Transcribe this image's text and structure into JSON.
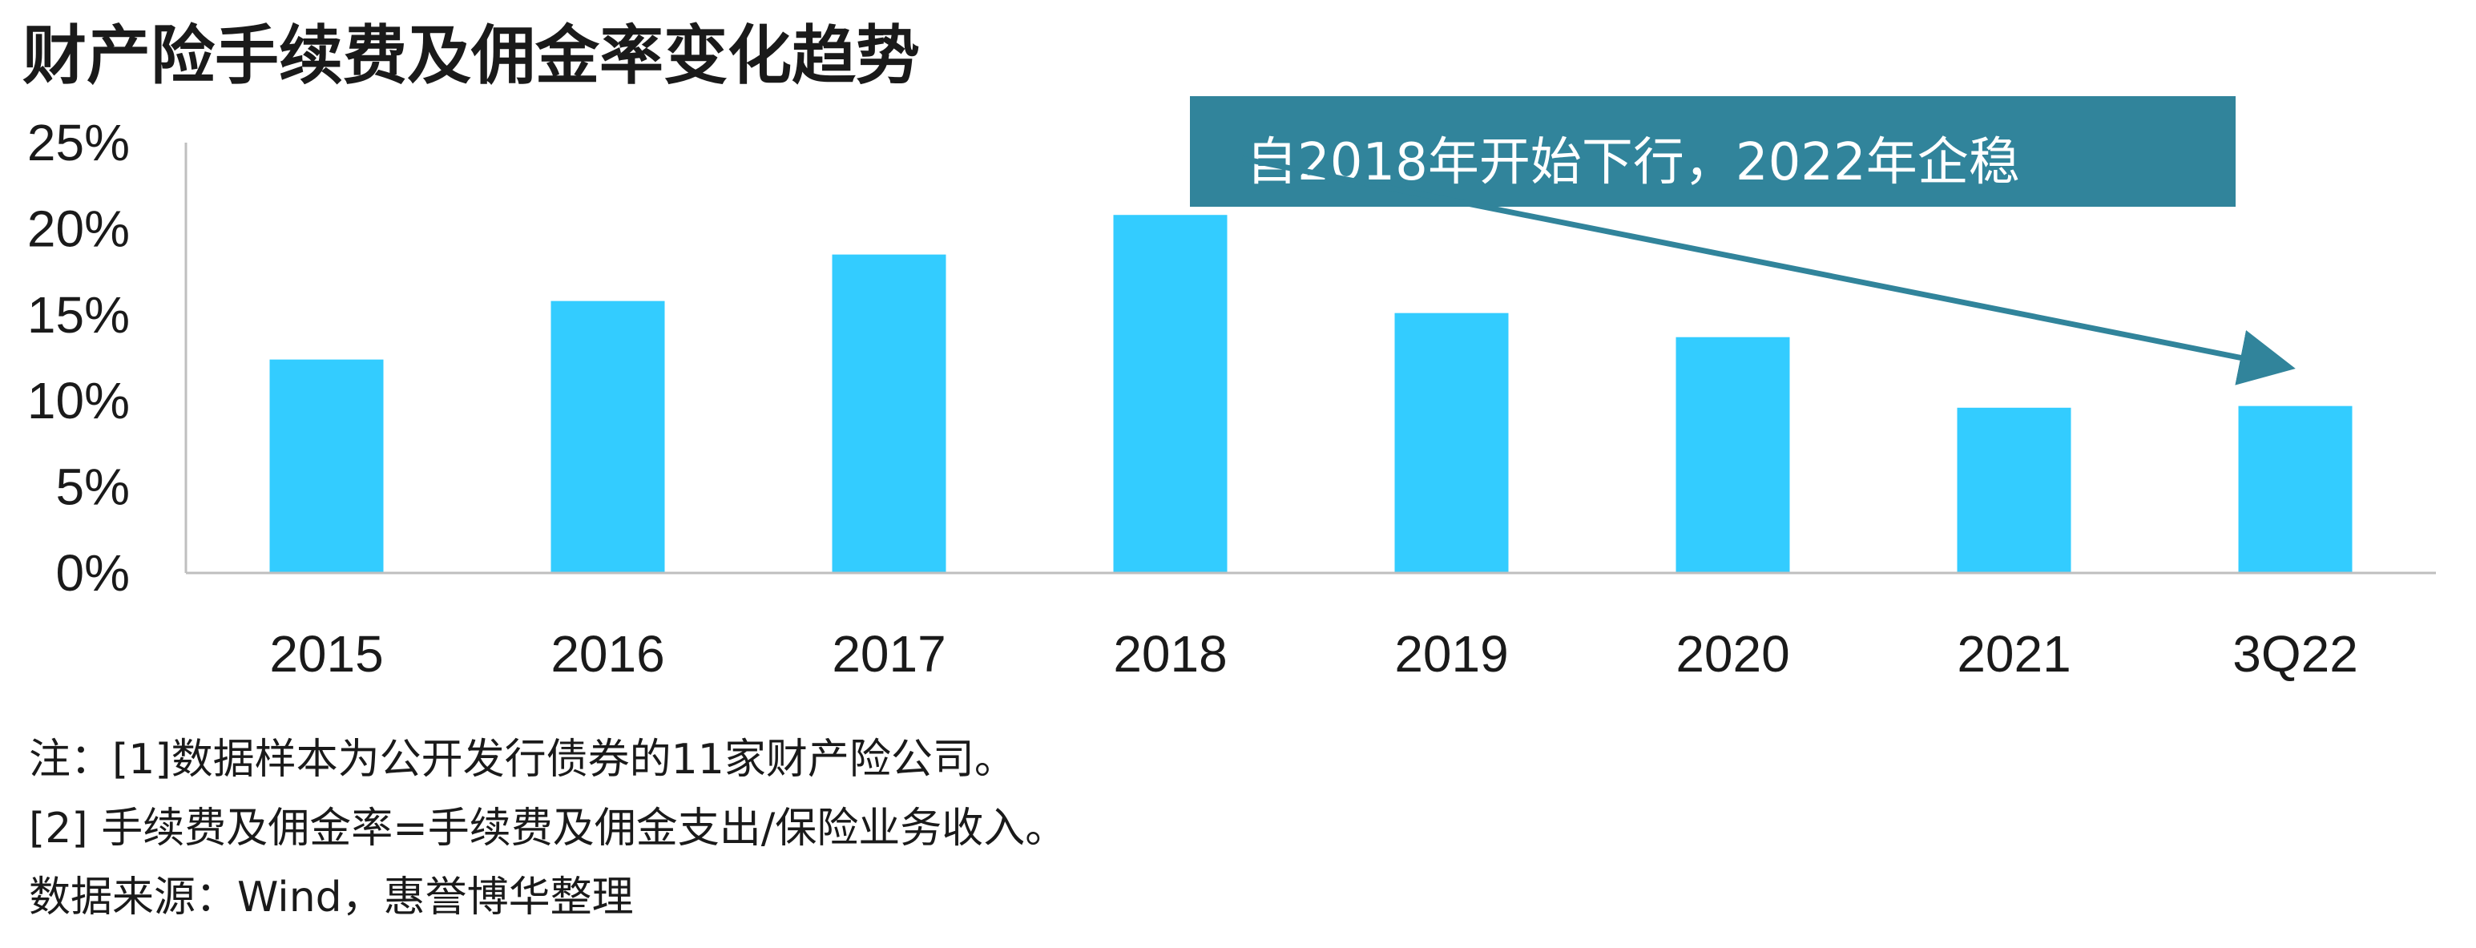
{
  "chart_data": {
    "type": "bar",
    "title": "财产险手续费及佣金率变化趋势",
    "categories": [
      "2015",
      "2016",
      "2017",
      "2018",
      "2019",
      "2020",
      "2021",
      "3Q22"
    ],
    "values": [
      12.4,
      15.8,
      18.5,
      20.8,
      15.1,
      13.7,
      9.6,
      9.7
    ],
    "ylim": [
      0,
      25
    ],
    "yticks": [
      "0%",
      "5%",
      "10%",
      "15%",
      "20%",
      "25%"
    ],
    "ytick_values": [
      0,
      5,
      10,
      15,
      20,
      25
    ],
    "xlabel": "",
    "ylabel": "",
    "grid": false,
    "annotation": {
      "text": "自2018年开始下行，2022年企稳",
      "arrow_from_category": "2018",
      "arrow_to_category": "3Q22"
    },
    "colors": {
      "bar": "#33CCFF",
      "annotation_box": "#31849B",
      "arrow": "#31849B",
      "axis": "#BFBFBF"
    }
  },
  "notes": {
    "note1": "注：[1]数据样本为公开发行债券的11家财产险公司。",
    "note2": "[2] 手续费及佣金率=手续费及佣金支出/保险业务收入。",
    "source": "数据来源：Wind，惠誉博华整理"
  }
}
